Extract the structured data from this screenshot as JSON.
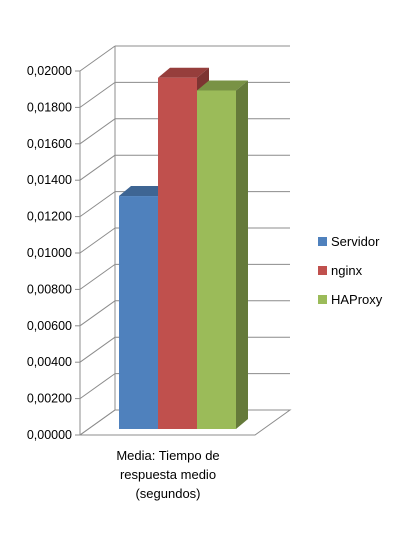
{
  "chart_data": {
    "type": "bar",
    "title": "",
    "xlabel": "",
    "ylabel": "",
    "ylim": [
      0,
      0.02
    ],
    "yticks": [
      "0,00000",
      "0,00200",
      "0,00400",
      "0,00600",
      "0,00800",
      "0,01000",
      "0,01200",
      "0,01400",
      "0,01600",
      "0,01800",
      "0,02000"
    ],
    "yticks_values": [
      0,
      0.002,
      0.004,
      0.006,
      0.008,
      0.01,
      0.012,
      0.014,
      0.016,
      0.018,
      0.02
    ],
    "categories": [
      "Media: Tiempo de respuesta medio (segundos)"
    ],
    "category_label_lines": [
      "Media: Tiempo de",
      "respuesta medio",
      "(segundos)"
    ],
    "series": [
      {
        "name": "Servidor",
        "values": [
          0.0128
        ],
        "color": "#4F81BD"
      },
      {
        "name": "nginx",
        "values": [
          0.0193
        ],
        "color": "#C0504D"
      },
      {
        "name": "HAProxy",
        "values": [
          0.0186
        ],
        "color": "#9BBB59"
      }
    ],
    "grid": true,
    "style_3d": true,
    "legend_position": "right"
  }
}
